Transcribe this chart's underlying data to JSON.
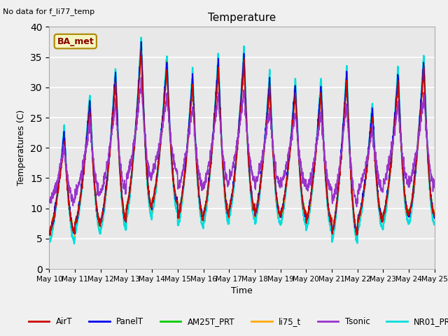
{
  "title": "Temperature",
  "ylabel": "Temperatures (C)",
  "xlabel": "Time",
  "top_left_text": "No data for f_li77_temp",
  "annotation_text": "BA_met",
  "ylim": [
    0,
    40
  ],
  "x_ticks_labels": [
    "May 10",
    "May 11",
    "May 12",
    "May 13",
    "May 14",
    "May 15",
    "May 16",
    "May 17",
    "May 18",
    "May 19",
    "May 20",
    "May 21",
    "May 22",
    "May 23",
    "May 24",
    "May 25"
  ],
  "series_colors": {
    "AirT": "#cc0000",
    "PanelT": "#0000ee",
    "AM25T_PRT": "#00cc00",
    "li75_t": "#ffaa00",
    "Tsonic": "#9933cc",
    "NR01_PRT": "#00dddd"
  },
  "background_color": "#e8e8e8",
  "grid_color": "#ffffff",
  "fig_width": 6.4,
  "fig_height": 4.8,
  "dpi": 100
}
